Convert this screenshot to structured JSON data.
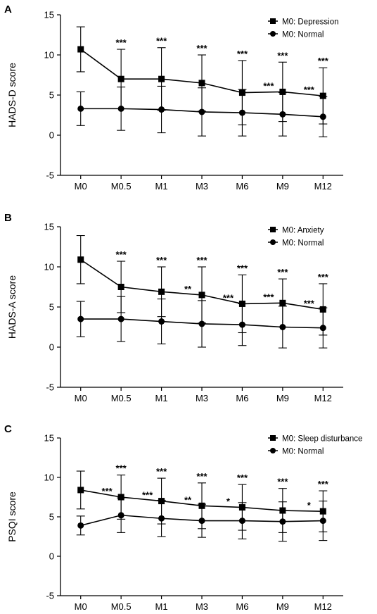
{
  "chart_data": [
    {
      "panel_letter": "A",
      "type": "line",
      "ylabel": "HADS-D score",
      "xlabel": "",
      "ylim": [
        -5,
        15
      ],
      "yticks": [
        -5,
        0,
        5,
        10,
        15
      ],
      "categories": [
        "M0",
        "M0.5",
        "M1",
        "M3",
        "M6",
        "M9",
        "M12"
      ],
      "legend_position": "top-right",
      "series": [
        {
          "name": "M0: Depression",
          "marker": "square",
          "values": [
            10.7,
            7.0,
            7.0,
            6.5,
            5.3,
            5.4,
            4.9
          ],
          "error": [
            2.8,
            3.7,
            3.9,
            3.5,
            4.0,
            3.7,
            3.5
          ]
        },
        {
          "name": "M0: Normal",
          "marker": "circle",
          "values": [
            3.3,
            3.3,
            3.2,
            2.9,
            2.8,
            2.6,
            2.3
          ],
          "error": [
            2.1,
            2.7,
            2.9,
            3.0,
            2.9,
            2.7,
            2.5
          ]
        }
      ],
      "annotations": [
        {
          "index": 1,
          "text": "***",
          "position": "above-error"
        },
        {
          "index": 2,
          "text": "***",
          "position": "above-error"
        },
        {
          "index": 3,
          "text": "***",
          "position": "above-error"
        },
        {
          "index": 4,
          "text": "***",
          "position": "above-error"
        },
        {
          "index": 5,
          "text": "***",
          "position": "above-error"
        },
        {
          "index": 5,
          "text": "***",
          "position": "left"
        },
        {
          "index": 6,
          "text": "***",
          "position": "above-error"
        },
        {
          "index": 6,
          "text": "***",
          "position": "left"
        }
      ]
    },
    {
      "panel_letter": "B",
      "type": "line",
      "ylabel": "HADS-A score",
      "xlabel": "",
      "ylim": [
        -5,
        15
      ],
      "yticks": [
        -5,
        0,
        5,
        10,
        15
      ],
      "categories": [
        "M0",
        "M0.5",
        "M1",
        "M3",
        "M6",
        "M9",
        "M12"
      ],
      "legend_position": "top-right",
      "series": [
        {
          "name": "M0: Anxiety",
          "marker": "square",
          "values": [
            10.9,
            7.5,
            6.9,
            6.5,
            5.4,
            5.5,
            4.7
          ],
          "error": [
            3.0,
            3.2,
            3.1,
            3.5,
            3.6,
            3.0,
            3.2
          ]
        },
        {
          "name": "M0: Normal",
          "marker": "circle",
          "values": [
            3.5,
            3.5,
            3.2,
            2.9,
            2.8,
            2.5,
            2.4
          ],
          "error": [
            2.2,
            2.8,
            2.8,
            2.9,
            2.6,
            2.6,
            2.5
          ]
        }
      ],
      "annotations": [
        {
          "index": 1,
          "text": "***",
          "position": "above-error"
        },
        {
          "index": 2,
          "text": "***",
          "position": "above-error"
        },
        {
          "index": 3,
          "text": "***",
          "position": "above-error"
        },
        {
          "index": 3,
          "text": "**",
          "position": "left"
        },
        {
          "index": 4,
          "text": "***",
          "position": "above-error"
        },
        {
          "index": 4,
          "text": "***",
          "position": "left"
        },
        {
          "index": 5,
          "text": "***",
          "position": "above-error"
        },
        {
          "index": 5,
          "text": "***",
          "position": "left"
        },
        {
          "index": 6,
          "text": "***",
          "position": "above-error"
        },
        {
          "index": 6,
          "text": "***",
          "position": "left"
        }
      ]
    },
    {
      "panel_letter": "C",
      "type": "line",
      "ylabel": "PSQI score",
      "xlabel": "",
      "ylim": [
        -5,
        15
      ],
      "yticks": [
        -5,
        0,
        5,
        10,
        15
      ],
      "categories": [
        "M0",
        "M0.5",
        "M1",
        "M3",
        "M6",
        "M9",
        "M12"
      ],
      "legend_position": "top-right",
      "series": [
        {
          "name": "M0: Sleep disturbance",
          "marker": "square",
          "values": [
            8.4,
            7.5,
            7.0,
            6.4,
            6.2,
            5.8,
            5.7
          ],
          "error": [
            2.4,
            2.8,
            2.9,
            2.9,
            2.9,
            2.8,
            2.6
          ]
        },
        {
          "name": "M0: Normal",
          "marker": "circle",
          "values": [
            3.9,
            5.2,
            4.8,
            4.5,
            4.5,
            4.4,
            4.5
          ],
          "error": [
            1.2,
            2.2,
            2.3,
            2.1,
            2.3,
            2.5,
            2.5
          ]
        }
      ],
      "annotations": [
        {
          "index": 1,
          "text": "***",
          "position": "above-error"
        },
        {
          "index": 1,
          "text": "***",
          "position": "left"
        },
        {
          "index": 2,
          "text": "***",
          "position": "above-error"
        },
        {
          "index": 2,
          "text": "***",
          "position": "left"
        },
        {
          "index": 3,
          "text": "***",
          "position": "above-error"
        },
        {
          "index": 3,
          "text": "**",
          "position": "left"
        },
        {
          "index": 4,
          "text": "***",
          "position": "above-error"
        },
        {
          "index": 4,
          "text": "*",
          "position": "left"
        },
        {
          "index": 5,
          "text": "***",
          "position": "above-error"
        },
        {
          "index": 6,
          "text": "***",
          "position": "above-error"
        },
        {
          "index": 6,
          "text": "*",
          "position": "left"
        }
      ]
    }
  ]
}
